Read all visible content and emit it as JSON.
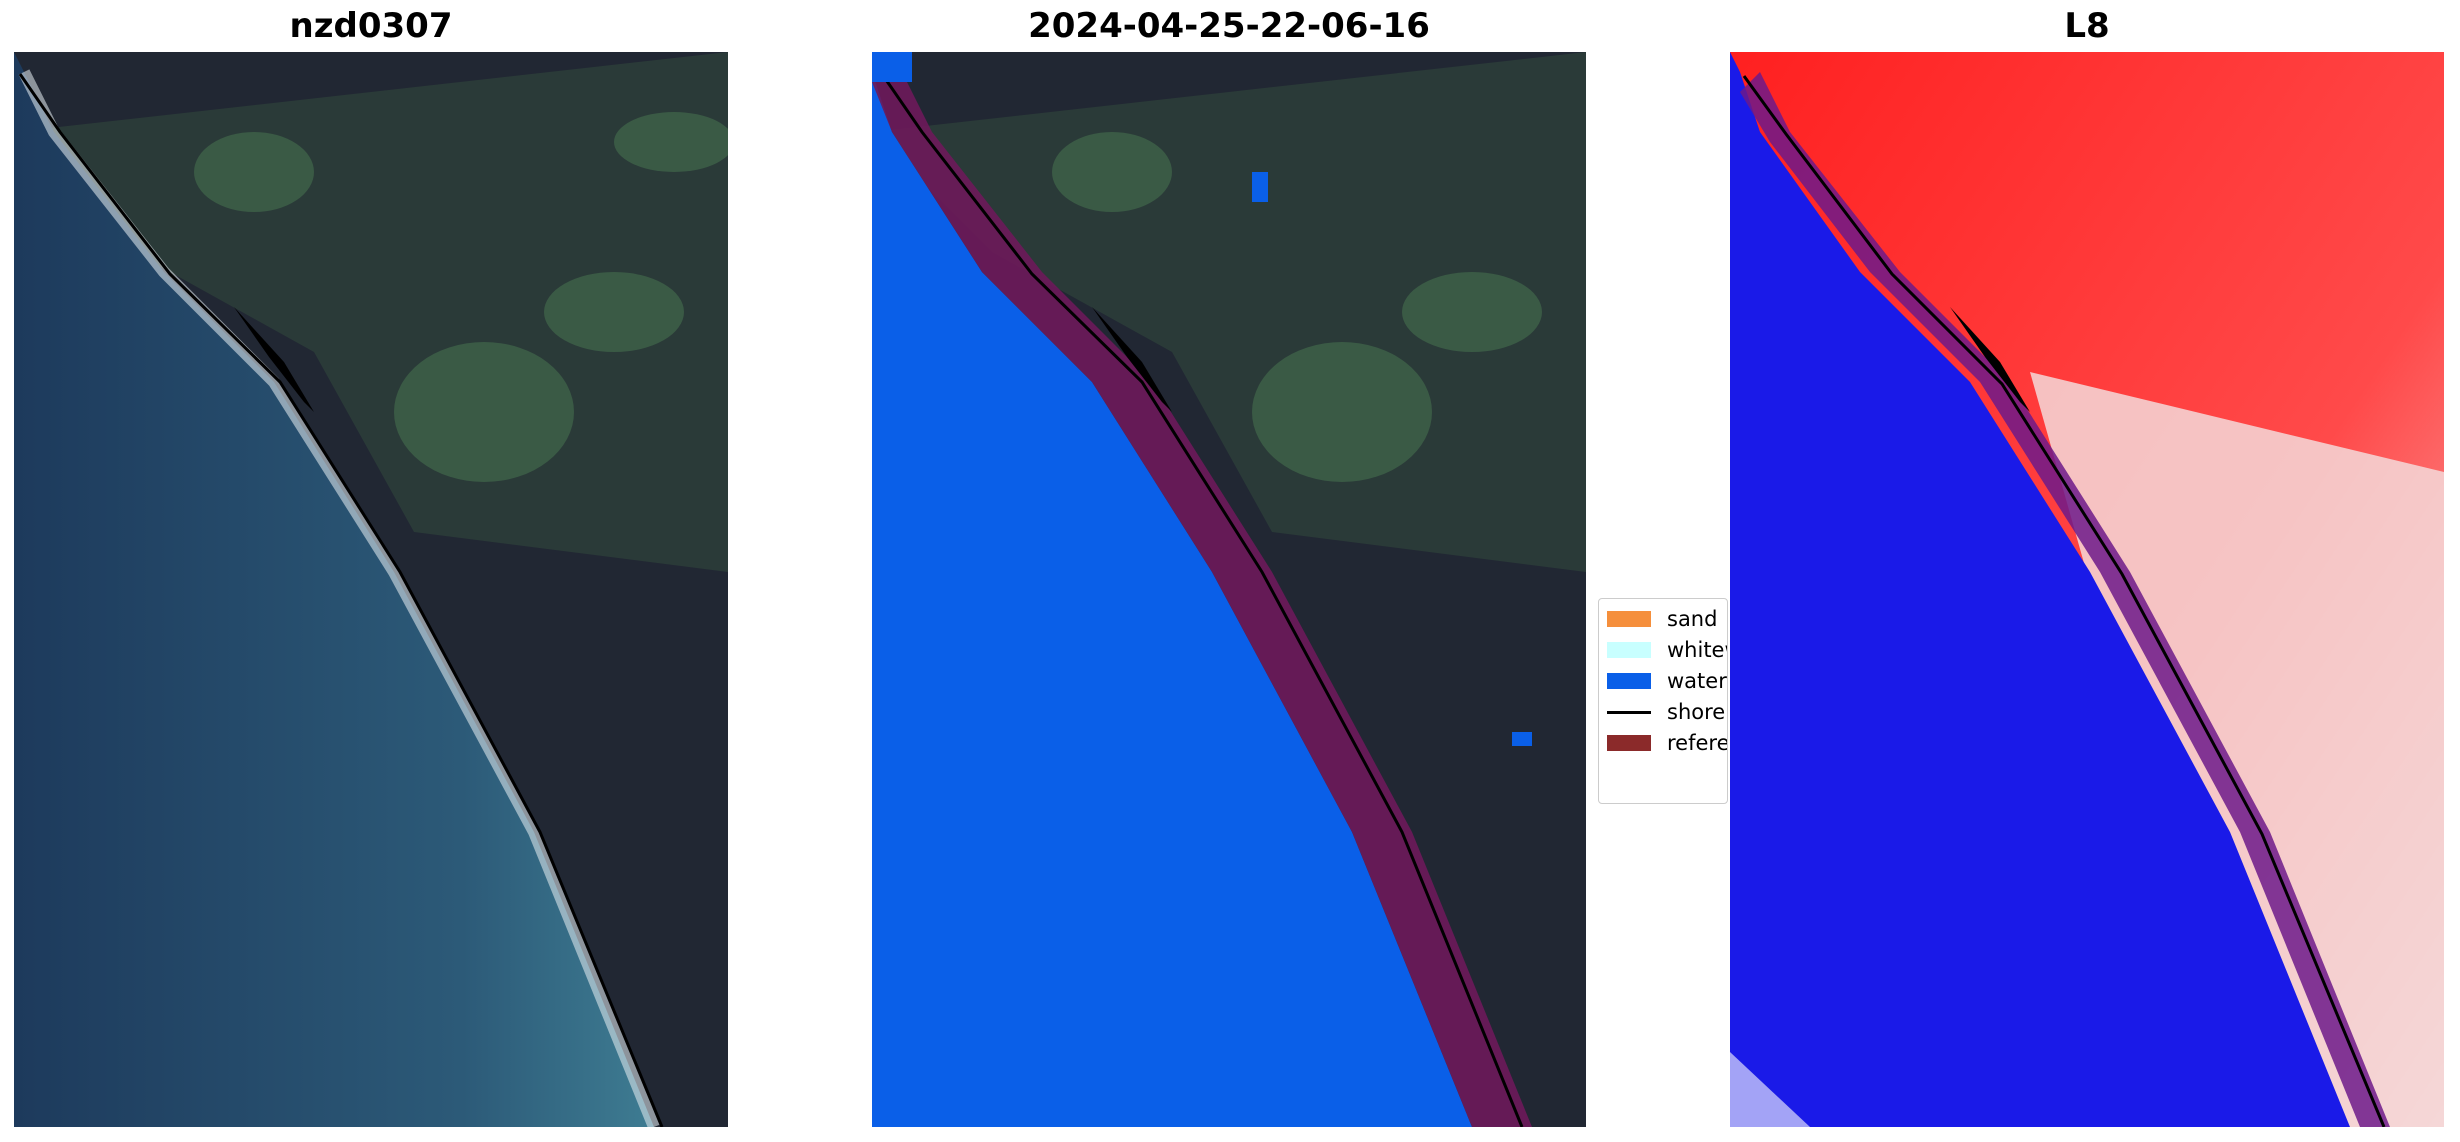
{
  "panels": [
    {
      "title": "nzd0307"
    },
    {
      "title": "2024-04-25-22-06-16"
    },
    {
      "title": "L8"
    }
  ],
  "legend": {
    "items": [
      {
        "label": "sand",
        "color": "#f58f3c",
        "kind": "patch"
      },
      {
        "label": "whitewater",
        "color": "#c8ffff",
        "kind": "patch"
      },
      {
        "label": "water",
        "color": "#0a5fe8",
        "kind": "patch"
      },
      {
        "label": "shoreline",
        "color": "#000000",
        "kind": "line"
      },
      {
        "label": "reference",
        "color": "#8b2a2a",
        "kind": "patch"
      }
    ]
  },
  "colors": {
    "ocean_deep": "#1d3a5c",
    "ocean_near": "#34677f",
    "land_dark": "#212733",
    "land_green": "#3a5a45",
    "water_class": "#0a5fe8",
    "buffer_purple": "#6d1a5a",
    "index_blue": "#1a1ae8",
    "index_red": "#ff2020"
  }
}
